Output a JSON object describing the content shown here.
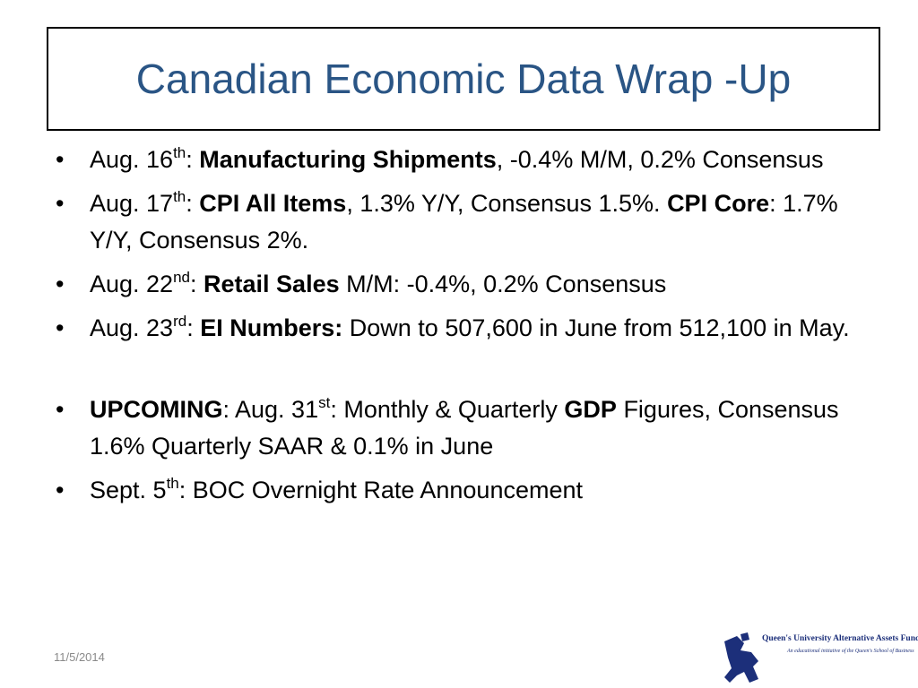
{
  "title": "Canadian Economic Data Wrap -Up",
  "bullets": [
    {
      "runs": [
        {
          "text": "Aug. 16"
        },
        {
          "text": "th",
          "style": "sup"
        },
        {
          "text": ": "
        },
        {
          "text": "Manufacturing Shipments",
          "style": "bold"
        },
        {
          "text": ", -0.4% M/M, 0.2% Consensus"
        }
      ]
    },
    {
      "runs": [
        {
          "text": "Aug. 17"
        },
        {
          "text": "th",
          "style": "sup"
        },
        {
          "text": ": "
        },
        {
          "text": "CPI All Items",
          "style": "bold"
        },
        {
          "text": ", 1.3% Y/Y, Consensus 1.5%. "
        },
        {
          "text": "CPI Core",
          "style": "bold"
        },
        {
          "text": ": 1.7% Y/Y, Consensus 2%."
        }
      ]
    },
    {
      "runs": [
        {
          "text": "Aug. 22"
        },
        {
          "text": "nd",
          "style": "sup"
        },
        {
          "text": ": "
        },
        {
          "text": "Retail Sales",
          "style": "bold"
        },
        {
          "text": " M/M: -0.4%, 0.2% Consensus"
        }
      ]
    },
    {
      "runs": [
        {
          "text": "Aug. 23"
        },
        {
          "text": "rd",
          "style": "sup"
        },
        {
          "text": ": "
        },
        {
          "text": "EI Numbers:",
          "style": "bold"
        },
        {
          "text": " Down to 507,600 in June from 512,100 in May."
        }
      ]
    },
    {
      "runs": [
        {
          "text": "UPCOMING",
          "style": "bold"
        },
        {
          "text": ": Aug. 31"
        },
        {
          "text": "st",
          "style": "sup"
        },
        {
          "text": ": Monthly & Quarterly "
        },
        {
          "text": "GDP",
          "style": "bold"
        },
        {
          "text": " Figures, Consensus 1.6% Quarterly SAAR & 0.1% in June"
        }
      ]
    },
    {
      "runs": [
        {
          "text": "Sept. 5"
        },
        {
          "text": "th",
          "style": "sup"
        },
        {
          "text": ": BOC Overnight Rate Announcement"
        }
      ]
    }
  ],
  "footer": {
    "date": "11/5/2014",
    "logo": {
      "name": "Queen's University Alternative Assets Fund",
      "tagline": "An educational initiative of the Queen's School of Business"
    }
  }
}
